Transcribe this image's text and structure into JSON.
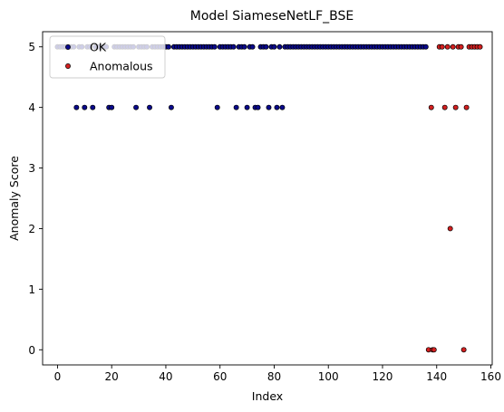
{
  "chart_data": {
    "type": "scatter",
    "title": "Model SiameseNetLF_BSE",
    "xlabel": "Index",
    "ylabel": "Anomaly Score",
    "xlim": [
      -5.5,
      160.5
    ],
    "ylim": [
      -0.25,
      5.25
    ],
    "xticks": [
      0,
      20,
      40,
      60,
      80,
      100,
      120,
      140,
      160
    ],
    "yticks": [
      0,
      1,
      2,
      3,
      4,
      5
    ],
    "grid": false,
    "legend_position": "top-left",
    "series": [
      {
        "name": "OK",
        "color": "#0a0a8c",
        "edge_color": "#000000",
        "points": [
          [
            0,
            5
          ],
          [
            1,
            5
          ],
          [
            2,
            5
          ],
          [
            3,
            5
          ],
          [
            4,
            5
          ],
          [
            5,
            5
          ],
          [
            6,
            5
          ],
          [
            7,
            4
          ],
          [
            8,
            5
          ],
          [
            9,
            5
          ],
          [
            10,
            4
          ],
          [
            11,
            5
          ],
          [
            12,
            5
          ],
          [
            13,
            4
          ],
          [
            14,
            5
          ],
          [
            15,
            5
          ],
          [
            16,
            5
          ],
          [
            17,
            5
          ],
          [
            18,
            5
          ],
          [
            19,
            4
          ],
          [
            20,
            4
          ],
          [
            21,
            5
          ],
          [
            22,
            5
          ],
          [
            23,
            5
          ],
          [
            24,
            5
          ],
          [
            25,
            5
          ],
          [
            26,
            5
          ],
          [
            27,
            5
          ],
          [
            28,
            5
          ],
          [
            29,
            4
          ],
          [
            30,
            5
          ],
          [
            31,
            5
          ],
          [
            32,
            5
          ],
          [
            33,
            5
          ],
          [
            34,
            4
          ],
          [
            35,
            5
          ],
          [
            36,
            5
          ],
          [
            37,
            5
          ],
          [
            38,
            5
          ],
          [
            39,
            5
          ],
          [
            40,
            5
          ],
          [
            41,
            5
          ],
          [
            42,
            4
          ],
          [
            43,
            5
          ],
          [
            44,
            5
          ],
          [
            45,
            5
          ],
          [
            46,
            5
          ],
          [
            47,
            5
          ],
          [
            48,
            5
          ],
          [
            49,
            5
          ],
          [
            50,
            5
          ],
          [
            51,
            5
          ],
          [
            52,
            5
          ],
          [
            53,
            5
          ],
          [
            54,
            5
          ],
          [
            55,
            5
          ],
          [
            56,
            5
          ],
          [
            57,
            5
          ],
          [
            58,
            5
          ],
          [
            59,
            4
          ],
          [
            60,
            5
          ],
          [
            61,
            5
          ],
          [
            62,
            5
          ],
          [
            63,
            5
          ],
          [
            64,
            5
          ],
          [
            65,
            5
          ],
          [
            66,
            4
          ],
          [
            67,
            5
          ],
          [
            68,
            5
          ],
          [
            69,
            5
          ],
          [
            70,
            4
          ],
          [
            71,
            5
          ],
          [
            72,
            5
          ],
          [
            73,
            4
          ],
          [
            74,
            4
          ],
          [
            75,
            5
          ],
          [
            76,
            5
          ],
          [
            77,
            5
          ],
          [
            78,
            4
          ],
          [
            79,
            5
          ],
          [
            80,
            5
          ],
          [
            81,
            4
          ],
          [
            82,
            5
          ],
          [
            83,
            4
          ],
          [
            84,
            5
          ],
          [
            85,
            5
          ],
          [
            86,
            5
          ],
          [
            87,
            5
          ],
          [
            88,
            5
          ],
          [
            89,
            5
          ],
          [
            90,
            5
          ],
          [
            91,
            5
          ],
          [
            92,
            5
          ],
          [
            93,
            5
          ],
          [
            94,
            5
          ],
          [
            95,
            5
          ],
          [
            96,
            5
          ],
          [
            97,
            5
          ],
          [
            98,
            5
          ],
          [
            99,
            5
          ],
          [
            100,
            5
          ],
          [
            101,
            5
          ],
          [
            102,
            5
          ],
          [
            103,
            5
          ],
          [
            104,
            5
          ],
          [
            105,
            5
          ],
          [
            106,
            5
          ],
          [
            107,
            5
          ],
          [
            108,
            5
          ],
          [
            109,
            5
          ],
          [
            110,
            5
          ],
          [
            111,
            5
          ],
          [
            112,
            5
          ],
          [
            113,
            5
          ],
          [
            114,
            5
          ],
          [
            115,
            5
          ],
          [
            116,
            5
          ],
          [
            117,
            5
          ],
          [
            118,
            5
          ],
          [
            119,
            5
          ],
          [
            120,
            5
          ],
          [
            121,
            5
          ],
          [
            122,
            5
          ],
          [
            123,
            5
          ],
          [
            124,
            5
          ],
          [
            125,
            5
          ],
          [
            126,
            5
          ],
          [
            127,
            5
          ],
          [
            128,
            5
          ],
          [
            129,
            5
          ],
          [
            130,
            5
          ],
          [
            131,
            5
          ],
          [
            132,
            5
          ],
          [
            133,
            5
          ],
          [
            134,
            5
          ],
          [
            135,
            5
          ],
          [
            136,
            5
          ]
        ]
      },
      {
        "name": "Anomalous",
        "color": "#d42020",
        "edge_color": "#000000",
        "points": [
          [
            137,
            0
          ],
          [
            138,
            4
          ],
          [
            138.5,
            0
          ],
          [
            139,
            0
          ],
          [
            141,
            5
          ],
          [
            142,
            5
          ],
          [
            143,
            4
          ],
          [
            144,
            5
          ],
          [
            145,
            2
          ],
          [
            146,
            5
          ],
          [
            147,
            4
          ],
          [
            148,
            5
          ],
          [
            149,
            5
          ],
          [
            150,
            0
          ],
          [
            151,
            4
          ],
          [
            152,
            5
          ],
          [
            153,
            5
          ],
          [
            154,
            5
          ],
          [
            155,
            5
          ],
          [
            156,
            5
          ]
        ]
      }
    ]
  }
}
